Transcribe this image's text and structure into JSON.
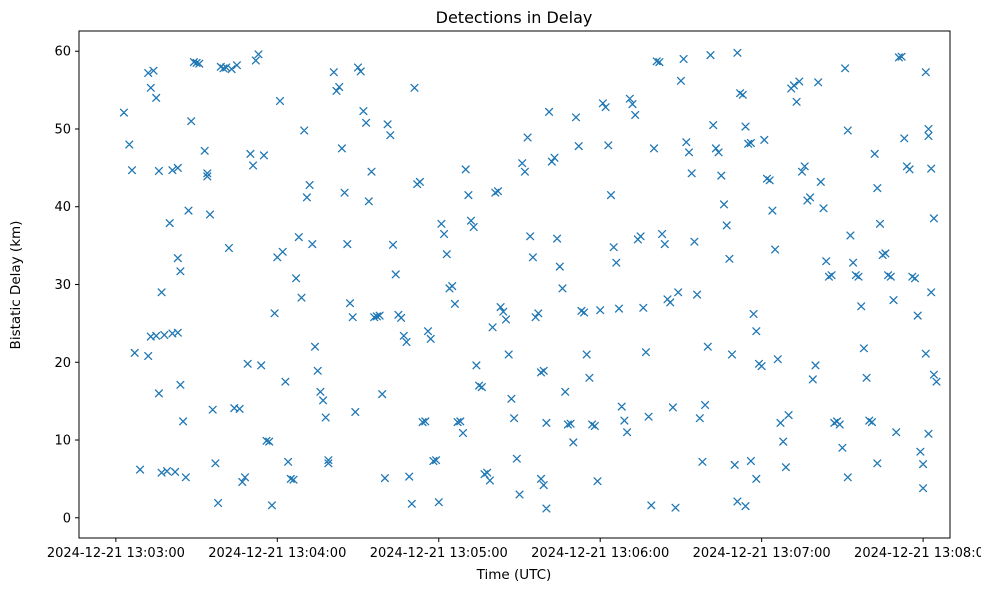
{
  "chart_data": {
    "type": "scatter",
    "title": "Detections in Delay",
    "xlabel": "Time (UTC)",
    "ylabel": "Bistatic  Delay (km)",
    "marker": "x",
    "marker_color": "#1f77b4",
    "grid": false,
    "legend": null,
    "x_tick_labels": [
      "2024-12-21 13:03:00",
      "2024-12-21 13:04:00",
      "2024-12-21 13:05:00",
      "2024-12-21 13:06:00",
      "2024-12-21 13:07:00",
      "2024-12-21 13:08:00"
    ],
    "x_tick_seconds": [
      0,
      60,
      120,
      180,
      240,
      300
    ],
    "x_unit": "seconds after 2024-12-21 13:03:00 UTC",
    "y_ticks": [
      0,
      10,
      20,
      30,
      40,
      50,
      60
    ],
    "xlim_seconds": [
      -13.7,
      310
    ],
    "ylim": [
      -2.6,
      62.6
    ],
    "points": [
      [
        3,
        52.1
      ],
      [
        5,
        48.0
      ],
      [
        6,
        44.7
      ],
      [
        7,
        21.2
      ],
      [
        9,
        6.2
      ],
      [
        12,
        57.2
      ],
      [
        14,
        57.5
      ],
      [
        13,
        55.3
      ],
      [
        15,
        54.0
      ],
      [
        16,
        44.6
      ],
      [
        17,
        29.0
      ],
      [
        12,
        20.8
      ],
      [
        16,
        16.0
      ],
      [
        13,
        23.3
      ],
      [
        15,
        23.4
      ],
      [
        18,
        23.5
      ],
      [
        19,
        6.0
      ],
      [
        17,
        5.8
      ],
      [
        21,
        44.7
      ],
      [
        23,
        45.0
      ],
      [
        20,
        37.9
      ],
      [
        23,
        33.4
      ],
      [
        24,
        31.7
      ],
      [
        21,
        23.7
      ],
      [
        23,
        23.8
      ],
      [
        25,
        12.4
      ],
      [
        22,
        5.9
      ],
      [
        26,
        5.2
      ],
      [
        24,
        17.1
      ],
      [
        27,
        39.5
      ],
      [
        28,
        51.0
      ],
      [
        29,
        58.6
      ],
      [
        30,
        58.5
      ],
      [
        31,
        58.4
      ],
      [
        33,
        47.2
      ],
      [
        34,
        43.9
      ],
      [
        34,
        44.3
      ],
      [
        35,
        39.0
      ],
      [
        36,
        13.9
      ],
      [
        37,
        7.0
      ],
      [
        38,
        1.9
      ],
      [
        39,
        58.0
      ],
      [
        40,
        57.8
      ],
      [
        41,
        57.9
      ],
      [
        43,
        57.7
      ],
      [
        45,
        58.2
      ],
      [
        42,
        34.7
      ],
      [
        44,
        14.1
      ],
      [
        46,
        14.0
      ],
      [
        47,
        4.6
      ],
      [
        48,
        5.2
      ],
      [
        49,
        19.8
      ],
      [
        50,
        46.8
      ],
      [
        51,
        45.3
      ],
      [
        52,
        58.8
      ],
      [
        53,
        59.6
      ],
      [
        55,
        46.6
      ],
      [
        54,
        19.6
      ],
      [
        56,
        9.9
      ],
      [
        57,
        9.8
      ],
      [
        58,
        1.6
      ],
      [
        59,
        26.3
      ],
      [
        60,
        33.5
      ],
      [
        61,
        53.6
      ],
      [
        62,
        34.2
      ],
      [
        63,
        17.5
      ],
      [
        64,
        7.2
      ],
      [
        65,
        5.0
      ],
      [
        66,
        4.9
      ],
      [
        67,
        30.8
      ],
      [
        68,
        36.1
      ],
      [
        69,
        28.3
      ],
      [
        70,
        49.8
      ],
      [
        71,
        41.2
      ],
      [
        72,
        42.8
      ],
      [
        73,
        35.2
      ],
      [
        74,
        22.0
      ],
      [
        75,
        18.9
      ],
      [
        76,
        16.2
      ],
      [
        77,
        15.1
      ],
      [
        78,
        12.9
      ],
      [
        79,
        7.4
      ],
      [
        79,
        7.0
      ],
      [
        81,
        57.3
      ],
      [
        82,
        54.9
      ],
      [
        83,
        55.4
      ],
      [
        84,
        47.5
      ],
      [
        85,
        41.8
      ],
      [
        86,
        35.2
      ],
      [
        87,
        27.6
      ],
      [
        88,
        25.8
      ],
      [
        89,
        13.6
      ],
      [
        90,
        57.9
      ],
      [
        91,
        57.4
      ],
      [
        92,
        52.3
      ],
      [
        93,
        50.8
      ],
      [
        94,
        40.7
      ],
      [
        95,
        44.5
      ],
      [
        96,
        25.8
      ],
      [
        97,
        25.9
      ],
      [
        98,
        26.0
      ],
      [
        99,
        15.9
      ],
      [
        100,
        5.1
      ],
      [
        101,
        50.6
      ],
      [
        102,
        49.2
      ],
      [
        103,
        35.1
      ],
      [
        104,
        31.3
      ],
      [
        105,
        26.1
      ],
      [
        106,
        25.7
      ],
      [
        107,
        23.4
      ],
      [
        108,
        22.6
      ],
      [
        109,
        5.3
      ],
      [
        110,
        1.8
      ],
      [
        111,
        55.3
      ],
      [
        112,
        42.9
      ],
      [
        113,
        43.2
      ],
      [
        114,
        12.3
      ],
      [
        115,
        12.4
      ],
      [
        116,
        24.0
      ],
      [
        117,
        23.0
      ],
      [
        118,
        7.3
      ],
      [
        119,
        7.4
      ],
      [
        120,
        2.0
      ],
      [
        121,
        37.8
      ],
      [
        122,
        36.5
      ],
      [
        123,
        33.9
      ],
      [
        124,
        29.5
      ],
      [
        125,
        29.8
      ],
      [
        126,
        27.5
      ],
      [
        127,
        12.3
      ],
      [
        128,
        12.4
      ],
      [
        129,
        10.9
      ],
      [
        130,
        44.8
      ],
      [
        131,
        41.5
      ],
      [
        132,
        38.2
      ],
      [
        133,
        37.4
      ],
      [
        134,
        19.6
      ],
      [
        135,
        17.0
      ],
      [
        136,
        16.8
      ],
      [
        137,
        5.6
      ],
      [
        138,
        5.8
      ],
      [
        139,
        4.8
      ],
      [
        140,
        24.5
      ],
      [
        141,
        41.8
      ],
      [
        142,
        42.0
      ],
      [
        143,
        27.1
      ],
      [
        144,
        26.5
      ],
      [
        145,
        25.5
      ],
      [
        146,
        21.0
      ],
      [
        147,
        15.3
      ],
      [
        148,
        12.8
      ],
      [
        149,
        7.6
      ],
      [
        150,
        3.0
      ],
      [
        151,
        45.6
      ],
      [
        152,
        44.5
      ],
      [
        153,
        48.9
      ],
      [
        154,
        36.2
      ],
      [
        155,
        33.5
      ],
      [
        156,
        25.8
      ],
      [
        157,
        26.3
      ],
      [
        158,
        18.7
      ],
      [
        159,
        18.9
      ],
      [
        160,
        12.2
      ],
      [
        158,
        5.0
      ],
      [
        159,
        4.2
      ],
      [
        160,
        1.2
      ],
      [
        161,
        52.2
      ],
      [
        162,
        45.8
      ],
      [
        163,
        46.3
      ],
      [
        164,
        35.9
      ],
      [
        165,
        32.3
      ],
      [
        166,
        29.5
      ],
      [
        167,
        16.2
      ],
      [
        168,
        12.0
      ],
      [
        169,
        12.1
      ],
      [
        170,
        9.7
      ],
      [
        171,
        51.5
      ],
      [
        172,
        47.8
      ],
      [
        173,
        26.6
      ],
      [
        174,
        26.4
      ],
      [
        175,
        21.0
      ],
      [
        176,
        18.0
      ],
      [
        177,
        12.0
      ],
      [
        178,
        11.8
      ],
      [
        179,
        4.7
      ],
      [
        180,
        26.7
      ],
      [
        181,
        53.3
      ],
      [
        182,
        52.8
      ],
      [
        183,
        47.9
      ],
      [
        184,
        41.5
      ],
      [
        185,
        34.8
      ],
      [
        186,
        32.8
      ],
      [
        187,
        26.9
      ],
      [
        188,
        14.3
      ],
      [
        189,
        12.5
      ],
      [
        190,
        11.0
      ],
      [
        191,
        53.9
      ],
      [
        192,
        53.2
      ],
      [
        193,
        51.8
      ],
      [
        194,
        35.8
      ],
      [
        195,
        36.2
      ],
      [
        196,
        27.0
      ],
      [
        197,
        21.3
      ],
      [
        198,
        13.0
      ],
      [
        199,
        1.6
      ],
      [
        200,
        47.5
      ],
      [
        201,
        58.7
      ],
      [
        202,
        58.6
      ],
      [
        203,
        36.5
      ],
      [
        204,
        35.2
      ],
      [
        205,
        28.1
      ],
      [
        206,
        27.7
      ],
      [
        207,
        14.2
      ],
      [
        208,
        1.3
      ],
      [
        209,
        29.0
      ],
      [
        210,
        56.2
      ],
      [
        211,
        59.0
      ],
      [
        212,
        48.3
      ],
      [
        213,
        47.0
      ],
      [
        214,
        44.3
      ],
      [
        215,
        35.5
      ],
      [
        216,
        28.7
      ],
      [
        217,
        12.8
      ],
      [
        218,
        7.2
      ],
      [
        219,
        14.5
      ],
      [
        220,
        22.0
      ],
      [
        221,
        59.5
      ],
      [
        222,
        50.5
      ],
      [
        223,
        47.5
      ],
      [
        224,
        47.0
      ],
      [
        225,
        44.0
      ],
      [
        226,
        40.3
      ],
      [
        227,
        37.6
      ],
      [
        228,
        33.3
      ],
      [
        229,
        21.0
      ],
      [
        230,
        6.8
      ],
      [
        231,
        59.8
      ],
      [
        232,
        54.6
      ],
      [
        233,
        54.4
      ],
      [
        234,
        50.3
      ],
      [
        235,
        48.1
      ],
      [
        236,
        48.2
      ],
      [
        237,
        26.2
      ],
      [
        238,
        24.0
      ],
      [
        239,
        19.8
      ],
      [
        240,
        19.5
      ],
      [
        231,
        2.1
      ],
      [
        234,
        1.5
      ],
      [
        236,
        7.3
      ],
      [
        238,
        5.0
      ],
      [
        241,
        48.6
      ],
      [
        242,
        43.6
      ],
      [
        243,
        43.4
      ],
      [
        244,
        39.5
      ],
      [
        245,
        34.5
      ],
      [
        246,
        20.4
      ],
      [
        247,
        12.2
      ],
      [
        248,
        9.8
      ],
      [
        249,
        6.5
      ],
      [
        250,
        13.2
      ],
      [
        251,
        55.2
      ],
      [
        252,
        55.6
      ],
      [
        253,
        53.5
      ],
      [
        254,
        56.1
      ],
      [
        255,
        44.5
      ],
      [
        256,
        45.2
      ],
      [
        257,
        40.8
      ],
      [
        258,
        41.2
      ],
      [
        259,
        17.8
      ],
      [
        260,
        19.6
      ],
      [
        261,
        56.0
      ],
      [
        262,
        43.2
      ],
      [
        263,
        39.8
      ],
      [
        264,
        33.0
      ],
      [
        265,
        31.0
      ],
      [
        266,
        31.2
      ],
      [
        267,
        12.2
      ],
      [
        268,
        12.4
      ],
      [
        269,
        12.0
      ],
      [
        270,
        9.0
      ],
      [
        271,
        57.8
      ],
      [
        272,
        49.8
      ],
      [
        273,
        36.3
      ],
      [
        274,
        32.8
      ],
      [
        275,
        31.2
      ],
      [
        276,
        31.0
      ],
      [
        277,
        27.2
      ],
      [
        278,
        21.8
      ],
      [
        279,
        18.0
      ],
      [
        280,
        12.5
      ],
      [
        281,
        12.3
      ],
      [
        272,
        5.2
      ],
      [
        282,
        46.8
      ],
      [
        283,
        42.4
      ],
      [
        284,
        37.8
      ],
      [
        285,
        33.8
      ],
      [
        286,
        34.0
      ],
      [
        287,
        31.2
      ],
      [
        288,
        31.0
      ],
      [
        289,
        28.0
      ],
      [
        290,
        11.0
      ],
      [
        283,
        7.0
      ],
      [
        291,
        59.2
      ],
      [
        292,
        59.3
      ],
      [
        293,
        48.8
      ],
      [
        294,
        45.2
      ],
      [
        295,
        44.8
      ],
      [
        296,
        31.0
      ],
      [
        297,
        30.8
      ],
      [
        298,
        26.0
      ],
      [
        299,
        8.5
      ],
      [
        300,
        3.8
      ],
      [
        301,
        57.3
      ],
      [
        302,
        50.0
      ],
      [
        302,
        49.1
      ],
      [
        303,
        44.9
      ],
      [
        304,
        38.5
      ],
      [
        303,
        29.0
      ],
      [
        301,
        21.1
      ],
      [
        304,
        18.4
      ],
      [
        305,
        17.5
      ],
      [
        302,
        10.8
      ],
      [
        300,
        6.9
      ]
    ]
  }
}
